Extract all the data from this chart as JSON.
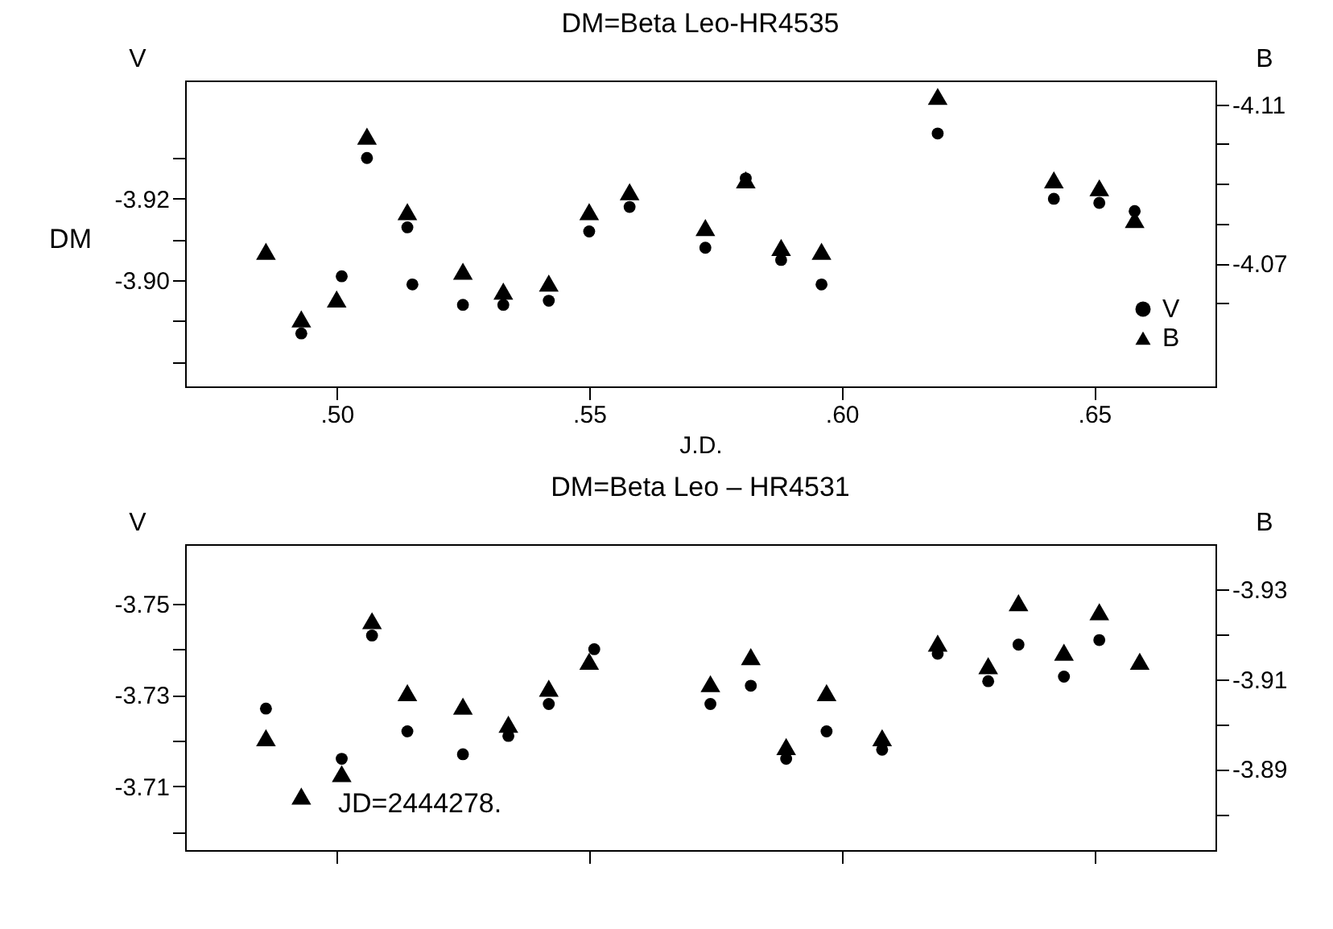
{
  "chart_data": [
    {
      "type": "scatter",
      "title": "DM=Beta Leo-HR4535",
      "xlabel": "J.D.",
      "ylabel": "V",
      "y2label": "B",
      "annotations": [
        "DM"
      ],
      "legend": "bottom right",
      "xlim": [
        0.47,
        0.674
      ],
      "xticks": [
        {
          "value": 0.5,
          "label": ".50"
        },
        {
          "value": 0.55,
          "label": ".55"
        },
        {
          "value": 0.6,
          "label": ".60"
        },
        {
          "value": 0.65,
          "label": ".65"
        }
      ],
      "ylim": [
        -3.874,
        -3.949
      ],
      "yticks": [
        {
          "value": -3.93,
          "label": null
        },
        -3.92,
        {
          "value": -3.91,
          "label": null
        },
        {
          "value": -3.9,
          "label": "-3.90"
        },
        {
          "value": -3.89,
          "label": null
        },
        {
          "value": -3.88,
          "label": null
        }
      ],
      "y2lim": [
        -4.039,
        -4.116
      ],
      "y2ticks": [
        -4.11,
        {
          "value": -4.1,
          "label": null
        },
        {
          "value": -4.09,
          "label": null
        },
        {
          "value": -4.08,
          "label": null
        },
        -4.07,
        {
          "value": -4.06,
          "label": null
        }
      ],
      "series": [
        {
          "name": "V",
          "color": "#000000",
          "marker": "circle",
          "x": [
            0.493,
            0.501,
            0.506,
            0.514,
            0.515,
            0.525,
            0.533,
            0.542,
            0.55,
            0.558,
            0.573,
            0.581,
            0.588,
            0.596,
            0.619,
            0.642,
            0.651,
            0.658
          ],
          "values": [
            -3.887,
            -3.901,
            -3.93,
            -3.913,
            -3.899,
            -3.894,
            -3.894,
            -3.895,
            -3.912,
            -3.918,
            -3.908,
            -3.925,
            -3.905,
            -3.899,
            -3.936,
            -3.92,
            -3.919,
            -3.917
          ]
        },
        {
          "name": "B",
          "color": "#000000",
          "marker": "triangle",
          "axis": "y2",
          "x": [
            0.486,
            0.493,
            0.5,
            0.506,
            0.514,
            0.525,
            0.533,
            0.542,
            0.55,
            0.558,
            0.573,
            0.581,
            0.588,
            0.596,
            0.619,
            0.642,
            0.651,
            0.658
          ],
          "values": [
            -4.073,
            -4.056,
            -4.061,
            -4.102,
            -4.083,
            -4.068,
            -4.063,
            -4.065,
            -4.083,
            -4.088,
            -4.079,
            -4.091,
            -4.074,
            -4.073,
            -4.112,
            -4.091,
            -4.089,
            -4.081
          ]
        }
      ]
    },
    {
      "type": "scatter",
      "title": "DM=Beta Leo – HR4531",
      "ylabel": "V",
      "y2label": "B",
      "annotations": [
        "JD=2444278."
      ],
      "tick_labels": "y",
      "xlim": [
        0.47,
        0.674
      ],
      "xticks": [
        {
          "value": 0.5,
          "label": null
        },
        {
          "value": 0.55,
          "label": null
        },
        {
          "value": 0.6,
          "label": null
        },
        {
          "value": 0.65,
          "label": null
        }
      ],
      "ylim": [
        -3.696,
        -3.763
      ],
      "yticks": [
        -3.75,
        {
          "value": -3.74,
          "label": null
        },
        -3.73,
        {
          "value": -3.72,
          "label": null
        },
        -3.71,
        {
          "value": -3.7,
          "label": null
        }
      ],
      "y2lim": [
        -3.872,
        -3.94
      ],
      "y2ticks": [
        -3.93,
        {
          "value": -3.92,
          "label": null
        },
        -3.91,
        {
          "value": -3.9,
          "label": null
        },
        -3.89,
        {
          "value": -3.88,
          "label": null
        }
      ],
      "series": [
        {
          "color": "#000000",
          "marker": "circle",
          "x": [
            0.486,
            0.501,
            0.507,
            0.514,
            0.525,
            0.534,
            0.542,
            0.551,
            0.574,
            0.582,
            0.589,
            0.597,
            0.608,
            0.619,
            0.629,
            0.635,
            0.644,
            0.651
          ],
          "values": [
            -3.727,
            -3.716,
            -3.743,
            -3.722,
            -3.717,
            -3.721,
            -3.728,
            -3.74,
            -3.728,
            -3.732,
            -3.716,
            -3.722,
            -3.718,
            -3.739,
            -3.733,
            -3.741,
            -3.734,
            -3.742
          ]
        },
        {
          "color": "#000000",
          "marker": "triangle",
          "axis": "y2",
          "x": [
            0.486,
            0.493,
            0.501,
            0.507,
            0.514,
            0.525,
            0.534,
            0.542,
            0.55,
            0.574,
            0.582,
            0.589,
            0.597,
            0.608,
            0.619,
            0.629,
            0.635,
            0.644,
            0.651,
            0.659
          ],
          "values": [
            -3.897,
            -3.884,
            -3.889,
            -3.923,
            -3.907,
            -3.904,
            -3.9,
            -3.908,
            -3.914,
            -3.909,
            -3.915,
            -3.895,
            -3.907,
            -3.897,
            -3.918,
            -3.913,
            -3.927,
            -3.916,
            -3.925,
            -3.914
          ]
        }
      ]
    }
  ]
}
